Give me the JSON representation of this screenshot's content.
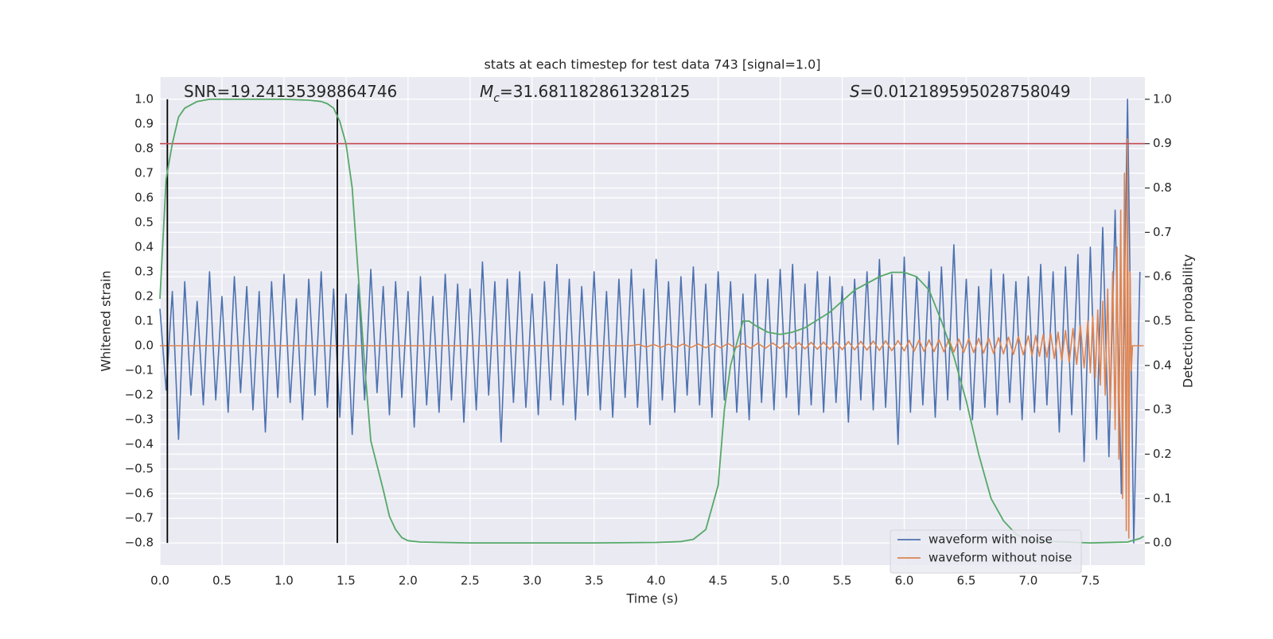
{
  "chart_data": {
    "type": "line",
    "title": "stats at each timestep for test data 743 [signal=1.0]",
    "xlabel": "Time (s)",
    "ylabel": "Whitened strain",
    "y2label": "Detection probability",
    "annotations": [
      {
        "text": "SNR=19.24135398864746"
      },
      {
        "symbol": "M",
        "subscript": "c",
        "text": "=31.681182861328125"
      },
      {
        "symbol": "S",
        "text": "=0.012189595028758049"
      }
    ],
    "xlim": [
      0,
      7.94
    ],
    "ylim": [
      -0.89,
      1.09
    ],
    "y2lim": [
      -0.05,
      1.05
    ],
    "xticks": [
      {
        "value": 0,
        "label": "0.0"
      },
      0.5,
      {
        "value": 1,
        "label": "1.0"
      },
      1.5,
      {
        "value": 2,
        "label": "2.0"
      },
      2.5,
      {
        "value": 3,
        "label": "3.0"
      },
      3.5,
      {
        "value": 4,
        "label": "4.0"
      },
      4.5,
      {
        "value": 5,
        "label": "5.0"
      },
      5.5,
      {
        "value": 6,
        "label": "6.0"
      },
      6.5,
      {
        "value": 7,
        "label": "7.0"
      },
      7.5
    ],
    "yticks": [
      {
        "value": -0.8,
        "label": "−0.8"
      },
      {
        "value": -0.7,
        "label": "−0.7"
      },
      {
        "value": -0.6,
        "label": "−0.6"
      },
      {
        "value": -0.5,
        "label": "−0.5"
      },
      {
        "value": -0.4,
        "label": "−0.4"
      },
      {
        "value": -0.3,
        "label": "−0.3"
      },
      {
        "value": -0.2,
        "label": "−0.2"
      },
      {
        "value": -0.1,
        "label": "−0.1"
      },
      {
        "value": 0,
        "label": "0.0"
      },
      0.1,
      0.2,
      0.3,
      0.4,
      0.5,
      0.6,
      0.7,
      0.8,
      0.9,
      {
        "value": 1,
        "label": "1.0"
      }
    ],
    "y2ticks": [
      {
        "value": 0,
        "label": "0.0"
      },
      0.1,
      0.2,
      0.3,
      0.4,
      0.5,
      0.6,
      0.7,
      0.8,
      0.9,
      {
        "value": 1,
        "label": "1.0"
      }
    ],
    "grid": true,
    "legend": "lower right",
    "series": [
      {
        "name": "waveform with noise",
        "color": "#4c72b0",
        "x": [
          0,
          0.05,
          0.1,
          0.15,
          0.2,
          0.25,
          0.3,
          0.35,
          0.4,
          0.45,
          0.5,
          0.55,
          0.6,
          0.65,
          0.7,
          0.75,
          0.8,
          0.85,
          0.9,
          0.95,
          1,
          1.05,
          1.1,
          1.15,
          1.2,
          1.25,
          1.3,
          1.35,
          1.4,
          1.45,
          1.5,
          1.55,
          1.6,
          1.65,
          1.7,
          1.75,
          1.8,
          1.85,
          1.9,
          1.95,
          2,
          2.05,
          2.1,
          2.15,
          2.2,
          2.25,
          2.3,
          2.35,
          2.4,
          2.45,
          2.5,
          2.55,
          2.6,
          2.65,
          2.7,
          2.75,
          2.8,
          2.85,
          2.9,
          2.95,
          3,
          3.05,
          3.1,
          3.15,
          3.2,
          3.25,
          3.3,
          3.35,
          3.4,
          3.45,
          3.5,
          3.55,
          3.6,
          3.65,
          3.7,
          3.75,
          3.8,
          3.85,
          3.9,
          3.95,
          4,
          4.05,
          4.1,
          4.15,
          4.2,
          4.25,
          4.3,
          4.35,
          4.4,
          4.45,
          4.5,
          4.55,
          4.6,
          4.65,
          4.7,
          4.75,
          4.8,
          4.85,
          4.9,
          4.95,
          5,
          5.05,
          5.1,
          5.15,
          5.2,
          5.25,
          5.3,
          5.35,
          5.4,
          5.45,
          5.5,
          5.55,
          5.6,
          5.65,
          5.7,
          5.75,
          5.8,
          5.85,
          5.9,
          5.95,
          6,
          6.05,
          6.1,
          6.15,
          6.2,
          6.25,
          6.3,
          6.35,
          6.4,
          6.45,
          6.5,
          6.55,
          6.6,
          6.65,
          6.7,
          6.75,
          6.8,
          6.85,
          6.9,
          6.95,
          7,
          7.05,
          7.1,
          7.15,
          7.2,
          7.25,
          7.3,
          7.35,
          7.4,
          7.45,
          7.5,
          7.55,
          7.6,
          7.65,
          7.7,
          7.75,
          7.8,
          7.85,
          7.9
        ],
        "values": [
          0.15,
          -0.18,
          0.22,
          -0.38,
          0.26,
          -0.2,
          0.18,
          -0.24,
          0.3,
          -0.22,
          0.2,
          -0.27,
          0.28,
          -0.19,
          0.24,
          -0.26,
          0.22,
          -0.35,
          0.26,
          -0.21,
          0.29,
          -0.23,
          0.19,
          -0.3,
          0.27,
          -0.2,
          0.3,
          -0.25,
          0.23,
          -0.29,
          0.21,
          -0.36,
          0.25,
          -0.22,
          0.31,
          -0.19,
          0.24,
          -0.28,
          0.26,
          -0.21,
          0.22,
          -0.33,
          0.28,
          -0.24,
          0.2,
          -0.27,
          0.29,
          -0.22,
          0.25,
          -0.31,
          0.23,
          -0.26,
          0.34,
          -0.2,
          0.26,
          -0.39,
          0.27,
          -0.23,
          0.3,
          -0.25,
          0.21,
          -0.28,
          0.26,
          -0.22,
          0.33,
          -0.24,
          0.27,
          -0.3,
          0.24,
          -0.2,
          0.3,
          -0.26,
          0.22,
          -0.29,
          0.27,
          -0.21,
          0.31,
          -0.25,
          0.23,
          -0.32,
          0.35,
          -0.22,
          0.26,
          -0.27,
          0.28,
          -0.2,
          0.32,
          -0.24,
          0.25,
          -0.29,
          0.3,
          -0.22,
          0.26,
          -0.27,
          0.21,
          -0.3,
          0.29,
          -0.23,
          0.27,
          -0.26,
          0.31,
          -0.21,
          0.33,
          -0.28,
          0.25,
          -0.24,
          0.3,
          -0.27,
          0.28,
          -0.23,
          0.24,
          -0.31,
          0.27,
          -0.22,
          0.3,
          -0.26,
          0.35,
          -0.25,
          0.29,
          -0.4,
          0.36,
          -0.27,
          0.28,
          -0.24,
          0.3,
          -0.29,
          0.32,
          -0.22,
          0.41,
          -0.26,
          0.27,
          -0.3,
          0.24,
          -0.25,
          0.31,
          -0.28,
          0.29,
          -0.23,
          0.26,
          -0.3,
          0.28,
          -0.27,
          0.33,
          -0.24,
          0.3,
          -0.35,
          0.32,
          -0.28,
          0.37,
          -0.47,
          0.4,
          -0.38,
          0.48,
          -0.45,
          0.55,
          -0.6,
          1.0,
          -0.8,
          0.3
        ]
      },
      {
        "name": "waveform without noise",
        "color": "#dd8452",
        "x": [
          0,
          3.8,
          3.86,
          3.92,
          3.98,
          4.04,
          4.1,
          4.16,
          4.22,
          4.28,
          4.34,
          4.4,
          4.46,
          4.52,
          4.58,
          4.64,
          4.7,
          4.76,
          4.82,
          4.88,
          4.94,
          5.0,
          5.05,
          5.1,
          5.15,
          5.2,
          5.25,
          5.3,
          5.35,
          5.4,
          5.45,
          5.5,
          5.55,
          5.6,
          5.65,
          5.7,
          5.75,
          5.8,
          5.85,
          5.9,
          5.95,
          6.0,
          6.04,
          6.08,
          6.12,
          6.16,
          6.2,
          6.24,
          6.28,
          6.32,
          6.36,
          6.4,
          6.44,
          6.48,
          6.52,
          6.56,
          6.6,
          6.64,
          6.68,
          6.72,
          6.76,
          6.8,
          6.84,
          6.88,
          6.92,
          6.96,
          7.0,
          7.03,
          7.06,
          7.09,
          7.12,
          7.15,
          7.18,
          7.21,
          7.24,
          7.27,
          7.3,
          7.33,
          7.36,
          7.39,
          7.42,
          7.45,
          7.48,
          7.5,
          7.52,
          7.54,
          7.56,
          7.58,
          7.6,
          7.62,
          7.64,
          7.66,
          7.68,
          7.7,
          7.715,
          7.73,
          7.745,
          7.76,
          7.775,
          7.79,
          7.8,
          7.81,
          7.82,
          7.83,
          7.84,
          7.93
        ],
        "values": [
          0,
          0,
          0.005,
          -0.005,
          0.005,
          -0.006,
          0.006,
          -0.006,
          0.007,
          -0.007,
          0.007,
          -0.008,
          0.008,
          -0.008,
          0.009,
          -0.009,
          0.009,
          -0.01,
          0.01,
          -0.01,
          0.011,
          -0.011,
          0.012,
          -0.012,
          0.013,
          -0.013,
          0.014,
          -0.014,
          0.015,
          -0.015,
          0.016,
          -0.016,
          0.017,
          -0.017,
          0.018,
          -0.018,
          0.019,
          -0.019,
          0.02,
          -0.02,
          0.021,
          -0.021,
          0.022,
          -0.022,
          0.023,
          -0.023,
          0.024,
          -0.024,
          0.025,
          -0.025,
          0.026,
          -0.026,
          0.027,
          -0.027,
          0.028,
          -0.028,
          0.03,
          -0.03,
          0.031,
          -0.031,
          0.033,
          -0.033,
          0.035,
          -0.035,
          0.037,
          -0.037,
          0.04,
          -0.04,
          0.042,
          -0.043,
          0.045,
          -0.047,
          0.05,
          -0.052,
          0.055,
          -0.058,
          0.062,
          -0.066,
          0.07,
          -0.076,
          0.082,
          -0.09,
          0.1,
          -0.11,
          0.12,
          -0.13,
          0.145,
          -0.16,
          0.18,
          -0.2,
          0.23,
          -0.26,
          0.3,
          -0.34,
          0.4,
          -0.46,
          0.55,
          -0.62,
          0.7,
          -0.75,
          0.84,
          -0.78,
          0.3,
          -0.1,
          0,
          0
        ]
      }
    ],
    "probability": {
      "axis": "y2",
      "color": "#55a868",
      "x": [
        0,
        0.05,
        0.1,
        0.15,
        0.2,
        0.3,
        0.4,
        0.6,
        1.0,
        1.2,
        1.3,
        1.35,
        1.4,
        1.45,
        1.5,
        1.55,
        1.6,
        1.65,
        1.7,
        1.8,
        1.85,
        1.9,
        1.95,
        2.0,
        2.1,
        2.5,
        3.5,
        4.0,
        4.2,
        4.3,
        4.4,
        4.5,
        4.55,
        4.6,
        4.7,
        4.75,
        4.8,
        4.9,
        5.0,
        5.1,
        5.2,
        5.4,
        5.6,
        5.8,
        5.9,
        6.0,
        6.1,
        6.2,
        6.3,
        6.4,
        6.5,
        6.6,
        6.7,
        6.8,
        6.9,
        7.0,
        7.5,
        7.8,
        7.9,
        7.93
      ],
      "values": [
        0.55,
        0.82,
        0.9,
        0.96,
        0.98,
        0.995,
        1.0,
        1.0,
        1.0,
        0.998,
        0.995,
        0.99,
        0.98,
        0.95,
        0.9,
        0.8,
        0.6,
        0.4,
        0.23,
        0.12,
        0.06,
        0.03,
        0.012,
        0.005,
        0.002,
        0.0,
        0.0,
        0.001,
        0.003,
        0.008,
        0.03,
        0.13,
        0.3,
        0.4,
        0.5,
        0.5,
        0.49,
        0.475,
        0.47,
        0.475,
        0.485,
        0.52,
        0.57,
        0.6,
        0.61,
        0.61,
        0.6,
        0.57,
        0.5,
        0.42,
        0.32,
        0.2,
        0.1,
        0.05,
        0.02,
        0.005,
        0.0,
        0.002,
        0.01,
        0.015
      ]
    },
    "vlines": {
      "x": [
        0.06,
        1.43
      ],
      "ymin": -0.8,
      "ymax": 1.0,
      "color": "#000000"
    },
    "hline": {
      "value": 0.9,
      "axis": "y2",
      "color": "#c44e52"
    }
  }
}
